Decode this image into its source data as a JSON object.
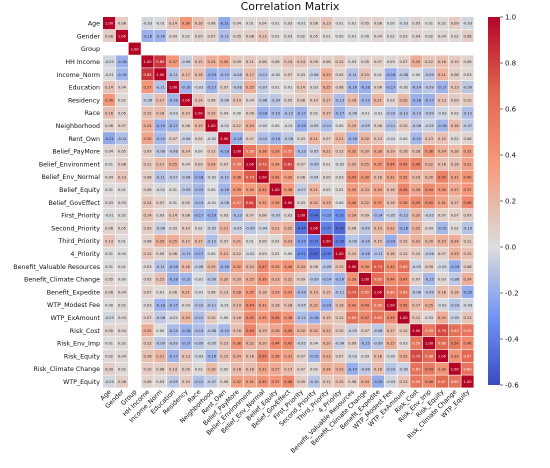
{
  "chart_data": {
    "type": "heatmap",
    "title": "Correlation Matrix",
    "variables": [
      "Age",
      "Gender",
      "Group",
      "HH Income",
      "Income_Norm",
      "Education",
      "Residency",
      "Race",
      "Neighborhood",
      "Rent_Own",
      "Belief_PayMore",
      "Belief_Environment",
      "Belief_Env_Normal",
      "Belief_Equity",
      "Belief_GovEffect",
      "First_Priority",
      "Second_Priority",
      "Third_Priority",
      "4_Priority",
      "Benefit_Valuable Resources",
      "Benefit_Climate Change",
      "Benefit_Expedite",
      "WTP_Modest Fee",
      "WTP_ExAmount",
      "Risk_Cost",
      "Risk_Env_Imp",
      "Risk_Equity",
      "Risk_Climate Change",
      "WTP_Equity"
    ],
    "empty_variable": "Group",
    "colorbar": {
      "min": -0.6,
      "max": 1.0,
      "ticks": [
        "1.0",
        "0.8",
        "0.6",
        "0.4",
        "0.2",
        "0.0",
        "-0.2",
        "-0.4",
        "-0.6"
      ]
    },
    "colormap": {
      "low": "#3b4cc0",
      "mid": "#dddddd",
      "high": "#b40426"
    },
    "cell_labels": "two-decimal correlation values",
    "age_row": [
      1.0,
      0.08,
      null,
      -0.03,
      -0.01,
      0.14,
      0.36,
      0.16,
      0.06,
      -0.21,
      0.04,
      0.01,
      0.04,
      0.01,
      0.03,
      -0.01,
      0.06,
      0.13,
      0.01,
      0.01,
      0.05,
      0.06,
      0.0,
      -0.03,
      0.05,
      0.01,
      0.02,
      0.09,
      -0.03
    ],
    "gender_row": [
      0.08,
      1.0,
      null,
      -0.18,
      -0.16,
      0.04,
      0.02,
      0.05,
      0.07,
      -0.12,
      0.05,
      0.08,
      0.13,
      0.01,
      0.03,
      0.02,
      0.05,
      0.01,
      0.0,
      0.01,
      0.0,
      0.04,
      0.02,
      0.03,
      0.04,
      0.02,
      0.04,
      0.02,
      0.08
    ],
    "hh_income_row": [
      -0.03,
      -0.18,
      null,
      1.0,
      0.85,
      0.37,
      -0.06,
      0.15,
      0.24,
      0.3,
      0.09,
      0.11,
      0.08,
      0.06,
      0.14,
      0.14,
      0.09,
      0.06,
      0.12,
      0.03,
      0.05,
      0.07,
      0.03,
      0.07,
      0.25,
      0.12,
      0.16,
      0.1,
      0.06
    ]
  }
}
